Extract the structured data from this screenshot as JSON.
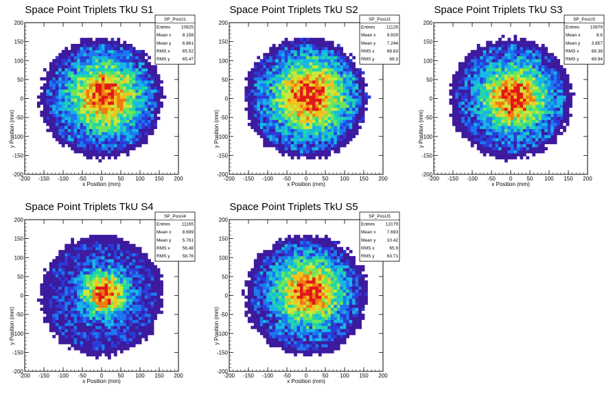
{
  "chart_data": [
    {
      "type": "heatmap",
      "title": "Space Point Triplets TkU S1",
      "xlabel": "x Position (mm)",
      "ylabel": "y Position (mm)",
      "xlim": [
        -200,
        200
      ],
      "ylim": [
        -200,
        200
      ],
      "xticks": [
        "-200",
        "-150",
        "-100",
        "-50",
        "0",
        "50",
        "100",
        "150",
        "200"
      ],
      "yticks": [
        "-200",
        "-150",
        "-100",
        "-50",
        "0",
        "50",
        "100",
        "150",
        "200"
      ],
      "stats": {
        "name": "SP_PosU1",
        "rows": [
          {
            "label": "Entries",
            "value": "10825"
          },
          {
            "label": "Mean x",
            "value": "8.158"
          },
          {
            "label": "Mean y",
            "value": "6.861"
          },
          {
            "label": "RMS x",
            "value": "65.52"
          },
          {
            "label": "RMS y",
            "value": "65.47"
          }
        ]
      },
      "distribution": {
        "radius_mm": 160,
        "center_x": 8.158,
        "center_y": 6.861,
        "peak_width_mm": 65.5
      }
    },
    {
      "type": "heatmap",
      "title": "Space Point Triplets TkU S2",
      "xlabel": "x Position (mm)",
      "ylabel": "y Position (mm)",
      "xlim": [
        -200,
        200
      ],
      "ylim": [
        -200,
        200
      ],
      "xticks": [
        "-200",
        "-150",
        "-100",
        "-50",
        "0",
        "50",
        "100",
        "150",
        "200"
      ],
      "yticks": [
        "-200",
        "-150",
        "-100",
        "-50",
        "0",
        "50",
        "100",
        "150",
        "200"
      ],
      "stats": {
        "name": "SP_PosU2",
        "rows": [
          {
            "label": "Entries",
            "value": "11126"
          },
          {
            "label": "Mean x",
            "value": "9.929"
          },
          {
            "label": "Mean y",
            "value": "7.244"
          },
          {
            "label": "RMS x",
            "value": "68.83"
          },
          {
            "label": "RMS y",
            "value": "69.3"
          }
        ]
      },
      "distribution": {
        "radius_mm": 160,
        "center_x": 9.929,
        "center_y": 7.244,
        "peak_width_mm": 69
      }
    },
    {
      "type": "heatmap",
      "title": "Space Point Triplets TkU S3",
      "xlabel": "x Position (mm)",
      "ylabel": "y Position (mm)",
      "xlim": [
        -200,
        200
      ],
      "ylim": [
        -200,
        200
      ],
      "xticks": [
        "-200",
        "-150",
        "-100",
        "-50",
        "0",
        "50",
        "100",
        "150",
        "200"
      ],
      "yticks": [
        "-200",
        "-150",
        "-100",
        "-50",
        "0",
        "50",
        "100",
        "150",
        "200"
      ],
      "stats": {
        "name": "SP_PosU3",
        "rows": [
          {
            "label": "Entries",
            "value": "10879"
          },
          {
            "label": "Mean x",
            "value": "8.6"
          },
          {
            "label": "Mean y",
            "value": "3.857"
          },
          {
            "label": "RMS x",
            "value": "68.38"
          },
          {
            "label": "RMS y",
            "value": "69.94"
          }
        ]
      },
      "distribution": {
        "radius_mm": 160,
        "center_x": 8.6,
        "center_y": 3.857,
        "peak_width_mm": 62
      }
    },
    {
      "type": "heatmap",
      "title": "Space Point Triplets TkU S4",
      "xlabel": "x Position (mm)",
      "ylabel": "y Position (mm)",
      "xlim": [
        -200,
        200
      ],
      "ylim": [
        -200,
        200
      ],
      "xticks": [
        "-200",
        "-150",
        "-100",
        "-50",
        "0",
        "50",
        "100",
        "150",
        "200"
      ],
      "yticks": [
        "-200",
        "-150",
        "-100",
        "-50",
        "0",
        "50",
        "100",
        "150",
        "200"
      ],
      "stats": {
        "name": "SP_PosU4",
        "rows": [
          {
            "label": "Entries",
            "value": "11165"
          },
          {
            "label": "Mean x",
            "value": "8.699"
          },
          {
            "label": "Mean y",
            "value": "5.761"
          },
          {
            "label": "RMS x",
            "value": "56.48"
          },
          {
            "label": "RMS y",
            "value": "58.76"
          }
        ]
      },
      "distribution": {
        "radius_mm": 160,
        "center_x": 8.699,
        "center_y": 5.761,
        "peak_width_mm": 42
      }
    },
    {
      "type": "heatmap",
      "title": "Space Point Triplets TkU S5",
      "xlabel": "x Position (mm)",
      "ylabel": "y Position (mm)",
      "xlim": [
        -200,
        200
      ],
      "ylim": [
        -200,
        200
      ],
      "xticks": [
        "-200",
        "-150",
        "-100",
        "-50",
        "0",
        "50",
        "100",
        "150",
        "200"
      ],
      "yticks": [
        "-200",
        "-150",
        "-100",
        "-50",
        "0",
        "50",
        "100",
        "150",
        "200"
      ],
      "stats": {
        "name": "SP_PosU5",
        "rows": [
          {
            "label": "Entries",
            "value": "13179"
          },
          {
            "label": "Mean x",
            "value": "7.693"
          },
          {
            "label": "Mean y",
            "value": "10.42"
          },
          {
            "label": "RMS x",
            "value": "65.9"
          },
          {
            "label": "RMS y",
            "value": "63.71"
          }
        ]
      },
      "distribution": {
        "radius_mm": 160,
        "center_x": 7.693,
        "center_y": 10.42,
        "peak_width_mm": 62
      }
    }
  ],
  "colors": {
    "palette": [
      "#3d1a9e",
      "#2b3bd9",
      "#1c78f0",
      "#17b6e6",
      "#22d6a6",
      "#6fe65a",
      "#c8e83a",
      "#f2c21e",
      "#f07a14",
      "#e01818"
    ],
    "background": "#ffffff",
    "axis": "#000000"
  }
}
